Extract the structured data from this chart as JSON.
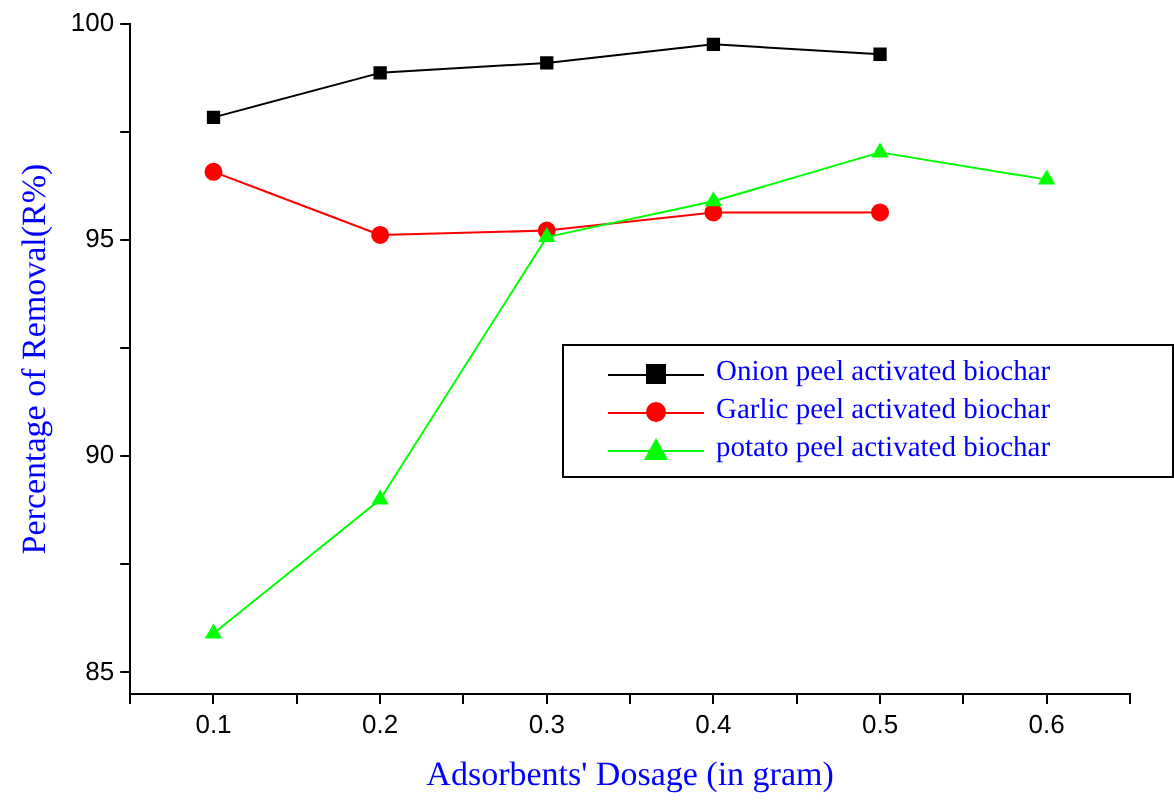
{
  "chart_data": {
    "type": "line",
    "xlabel": "Adsorbents' Dosage (in gram)",
    "ylabel": "Percentage of Removal(R%)",
    "xlim": [
      0.05,
      0.65
    ],
    "xticks": [
      {
        "value": 0.05,
        "label": null
      },
      0.1,
      {
        "value": 0.15,
        "label": null
      },
      0.2,
      {
        "value": 0.25,
        "label": null
      },
      0.3,
      {
        "value": 0.35,
        "label": null
      },
      0.4,
      {
        "value": 0.45,
        "label": null
      },
      0.5,
      {
        "value": 0.55,
        "label": null
      },
      0.6,
      {
        "value": 0.65,
        "label": null
      }
    ],
    "ylim": [
      84.5,
      100
    ],
    "yticks": [
      85,
      {
        "value": 87.5,
        "label": null
      },
      90,
      {
        "value": 92.5,
        "label": null
      },
      95,
      {
        "value": 97.5,
        "label": null
      },
      100
    ],
    "grid": false,
    "legend": "right",
    "line_style": "solid",
    "series": [
      {
        "name": "Onion peel activated biochar",
        "color": "#000000",
        "marker": "square",
        "x": [
          0.1,
          0.2,
          0.3,
          0.4,
          0.5
        ],
        "values": [
          97.84,
          98.87,
          99.1,
          99.53,
          99.3
        ]
      },
      {
        "name": "Garlic peel activated biochar",
        "color": "#ff0000",
        "marker": "circle",
        "x": [
          0.1,
          0.2,
          0.3,
          0.4,
          0.5
        ],
        "values": [
          96.58,
          95.12,
          95.22,
          95.64,
          95.64
        ]
      },
      {
        "name": "potato peel activated biochar",
        "color": "#00ff00",
        "marker": "triangle",
        "x": [
          0.1,
          0.2,
          0.3,
          0.4,
          0.5,
          0.6
        ],
        "values": [
          85.9,
          89.0,
          95.07,
          95.9,
          97.03,
          96.4
        ]
      }
    ]
  }
}
